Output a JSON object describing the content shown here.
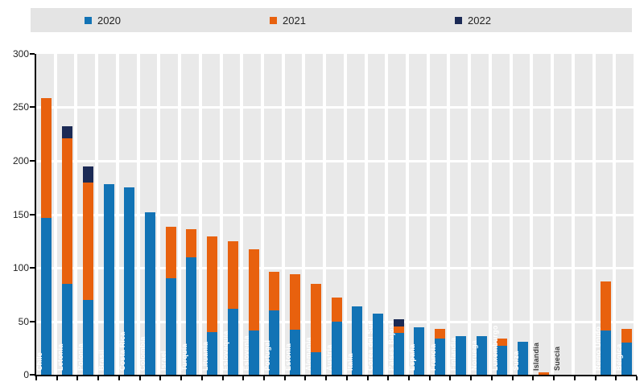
{
  "legend": {
    "items": [
      {
        "label": "2020",
        "color": "#1273b5"
      },
      {
        "label": "2021",
        "color": "#e8610e"
      },
      {
        "label": "2022",
        "color": "#1b2a55"
      }
    ]
  },
  "chart_data": {
    "type": "bar",
    "stacked": true,
    "title": "",
    "xlabel": "",
    "ylabel": "",
    "ylim": [
      0,
      300
    ],
    "yticks": [
      0,
      50,
      100,
      150,
      200,
      250,
      300
    ],
    "grid": true,
    "legend_position": "top",
    "plot_background": "#e9e9e9",
    "categories": [
      "Chile",
      "Letonia",
      "Polonia",
      "Brasil",
      "Costa Rica",
      "Colombia",
      "Israel",
      "Turquía",
      "Lituania",
      "Eslovaquia",
      "Eslovenia",
      "Portugal",
      "Estonia",
      "Alemania",
      "Austria",
      "Italia",
      "Corea del Sur",
      "Países Bajos",
      "España",
      "Francia",
      "Finlandia",
      "Noruega",
      "Luxemburgo",
      "Suiza",
      "Islandia",
      "Suecia",
      "",
      "Reino Unido",
      "Bélgica"
    ],
    "series": [
      {
        "name": "2020",
        "color": "#1273b5",
        "values": [
          147,
          85,
          70,
          178,
          175,
          152,
          90,
          110,
          40,
          62,
          41,
          60,
          42,
          21,
          50,
          64,
          57,
          39,
          44,
          34,
          36,
          36,
          27,
          31,
          0,
          0,
          0,
          41,
          30
        ]
      },
      {
        "name": "2021",
        "color": "#e8610e",
        "values": [
          112,
          136,
          110,
          0,
          0,
          0,
          48,
          26,
          89,
          63,
          76,
          36,
          52,
          64,
          22,
          0,
          0,
          6,
          0,
          9,
          0,
          0,
          7,
          0,
          2,
          0,
          0,
          46,
          13
        ]
      },
      {
        "name": "2022",
        "color": "#1b2a55",
        "values": [
          0,
          11,
          15,
          0,
          0,
          0,
          0,
          0,
          0,
          0,
          0,
          0,
          0,
          0,
          0,
          0,
          0,
          7,
          0,
          0,
          0,
          0,
          0,
          0,
          0,
          0,
          0,
          0,
          0
        ]
      }
    ]
  }
}
